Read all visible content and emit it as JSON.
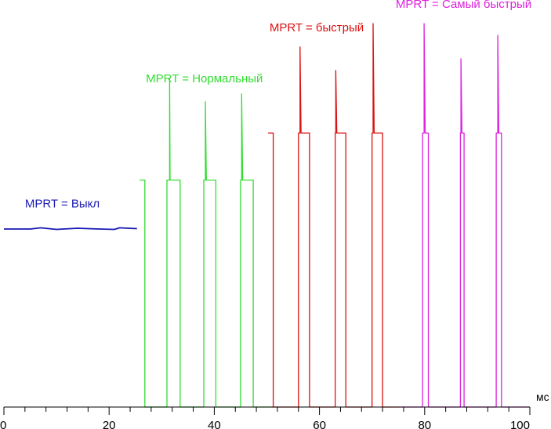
{
  "chart_data": {
    "type": "line",
    "title": "",
    "xlabel": "",
    "ylabel": "",
    "x_unit": "мс",
    "xlim": [
      0,
      100
    ],
    "x_ticks": [
      0,
      20,
      40,
      60,
      80,
      100
    ],
    "grid": false,
    "legend": "none",
    "y_axis_shown": false,
    "series": [
      {
        "name": "MPRT = Выкл",
        "color": "#1a1ab4",
        "label_pos": [
          4,
          0.51
        ],
        "points": [
          [
            0,
            0.455
          ],
          [
            5,
            0.455
          ],
          [
            7,
            0.458
          ],
          [
            10,
            0.454
          ],
          [
            14,
            0.457
          ],
          [
            18,
            0.455
          ],
          [
            21,
            0.454
          ],
          [
            22,
            0.458
          ],
          [
            25.3,
            0.456
          ]
        ]
      },
      {
        "name": "MPRT = Нормальный",
        "color": "#33dd33",
        "label_pos": [
          27,
          0.83
        ],
        "points": [
          [
            25.8,
            0.58
          ],
          [
            26.8,
            0.58
          ],
          [
            26.8,
            0.0
          ],
          [
            31.0,
            0.0
          ],
          [
            31.0,
            0.58
          ],
          [
            31.5,
            0.58
          ],
          [
            31.5,
            0.84
          ],
          [
            31.6,
            0.58
          ],
          [
            33.5,
            0.58
          ],
          [
            33.5,
            0.0
          ],
          [
            38.0,
            0.0
          ],
          [
            38.0,
            0.58
          ],
          [
            38.3,
            0.58
          ],
          [
            38.3,
            0.78
          ],
          [
            38.5,
            0.58
          ],
          [
            40.3,
            0.58
          ],
          [
            40.3,
            0.0
          ],
          [
            45.0,
            0.0
          ],
          [
            45.0,
            0.58
          ],
          [
            45.2,
            0.58
          ],
          [
            45.2,
            0.8
          ],
          [
            45.4,
            0.58
          ],
          [
            47.4,
            0.58
          ],
          [
            47.4,
            0.0
          ],
          [
            51.0,
            0.0
          ]
        ]
      },
      {
        "name": "MPRT = быстрый",
        "color": "#dd1111",
        "label_pos": [
          50.5,
          0.96
        ],
        "points": [
          [
            51.0,
            0.0
          ],
          [
            51.2,
            0.0
          ],
          [
            51.2,
            0.7
          ],
          [
            50.3,
            0.7
          ],
          [
            51.2,
            0.7
          ],
          [
            51.2,
            0.0
          ],
          [
            56.0,
            0.0
          ],
          [
            56.0,
            0.7
          ],
          [
            56.3,
            0.7
          ],
          [
            56.3,
            0.92
          ],
          [
            56.5,
            0.7
          ],
          [
            58.1,
            0.7
          ],
          [
            58.1,
            0.0
          ],
          [
            63.0,
            0.0
          ],
          [
            63.0,
            0.7
          ],
          [
            63.1,
            0.7
          ],
          [
            63.1,
            0.86
          ],
          [
            63.3,
            0.7
          ],
          [
            65.0,
            0.7
          ],
          [
            65.0,
            0.0
          ],
          [
            70.0,
            0.0
          ],
          [
            70.0,
            0.7
          ],
          [
            70.2,
            0.7
          ],
          [
            70.2,
            0.98
          ],
          [
            70.4,
            0.7
          ],
          [
            72.0,
            0.7
          ],
          [
            72.0,
            0.0
          ],
          [
            75.0,
            0.0
          ]
        ]
      },
      {
        "name": "MPRT = Самый быстрый",
        "color": "#dd22dd",
        "label_pos": [
          74.5,
          1.02
        ],
        "points": [
          [
            75.0,
            0.0
          ],
          [
            79.6,
            0.0
          ],
          [
            79.6,
            0.7
          ],
          [
            79.9,
            0.7
          ],
          [
            79.9,
            0.98
          ],
          [
            80.1,
            0.7
          ],
          [
            80.7,
            0.7
          ],
          [
            80.7,
            0.0
          ],
          [
            86.8,
            0.0
          ],
          [
            86.8,
            0.7
          ],
          [
            86.9,
            0.7
          ],
          [
            86.9,
            0.89
          ],
          [
            87.1,
            0.7
          ],
          [
            87.5,
            0.7
          ],
          [
            87.5,
            0.0
          ],
          [
            93.6,
            0.0
          ],
          [
            93.6,
            0.7
          ],
          [
            93.9,
            0.7
          ],
          [
            93.9,
            0.95
          ],
          [
            94.1,
            0.7
          ],
          [
            94.6,
            0.7
          ],
          [
            94.6,
            0.0
          ],
          [
            100.0,
            0.0
          ]
        ]
      }
    ]
  }
}
